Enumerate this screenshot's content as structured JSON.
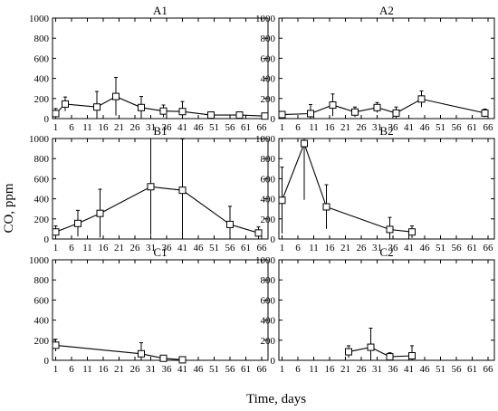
{
  "figure": {
    "ylabel": "CO, ppm",
    "xlabel": "Time, days"
  },
  "chart_data": [
    {
      "type": "line",
      "title": "A1",
      "xlim": [
        0,
        68
      ],
      "ylim": [
        0,
        1000
      ],
      "xticks": [
        1,
        6,
        11,
        16,
        21,
        26,
        31,
        36,
        41,
        46,
        51,
        56,
        61,
        66
      ],
      "yticks": [
        0,
        200,
        400,
        600,
        800,
        1000
      ],
      "points": [
        {
          "x": 1,
          "y": 50,
          "err": 50
        },
        {
          "x": 4,
          "y": 145,
          "err": 70
        },
        {
          "x": 14,
          "y": 115,
          "err": 155
        },
        {
          "x": 20,
          "y": 220,
          "err": 190
        },
        {
          "x": 28,
          "y": 110,
          "err": 110
        },
        {
          "x": 35,
          "y": 75,
          "err": 60
        },
        {
          "x": 41,
          "y": 70,
          "err": 100
        },
        {
          "x": 50,
          "y": 35,
          "err": 30
        },
        {
          "x": 59,
          "y": 35,
          "err": 30
        },
        {
          "x": 67,
          "y": 25,
          "err": 20
        }
      ]
    },
    {
      "type": "line",
      "title": "A2",
      "xlim": [
        0,
        68
      ],
      "ylim": [
        0,
        1000
      ],
      "xticks": [
        1,
        6,
        11,
        16,
        21,
        26,
        31,
        36,
        41,
        46,
        51,
        56,
        61,
        66
      ],
      "yticks": [
        0,
        200,
        400,
        600,
        800,
        1000
      ],
      "points": [
        {
          "x": 1,
          "y": 40,
          "err": 30
        },
        {
          "x": 10,
          "y": 50,
          "err": 90
        },
        {
          "x": 17,
          "y": 135,
          "err": 110
        },
        {
          "x": 24,
          "y": 65,
          "err": 50
        },
        {
          "x": 31,
          "y": 110,
          "err": 50
        },
        {
          "x": 37,
          "y": 55,
          "err": 60
        },
        {
          "x": 45,
          "y": 195,
          "err": 80
        },
        {
          "x": 65,
          "y": 55,
          "err": 40
        }
      ]
    },
    {
      "type": "line",
      "title": "B1",
      "xlim": [
        0,
        68
      ],
      "ylim": [
        0,
        1000
      ],
      "xticks": [
        1,
        6,
        11,
        16,
        21,
        26,
        31,
        36,
        41,
        46,
        51,
        56,
        61,
        66
      ],
      "yticks": [
        0,
        200,
        400,
        600,
        800,
        1000
      ],
      "points": [
        {
          "x": 1,
          "y": 70,
          "err": 60
        },
        {
          "x": 8,
          "y": 155,
          "err": 130
        },
        {
          "x": 15,
          "y": 255,
          "err": 240
        },
        {
          "x": 31,
          "y": 520,
          "err": 480
        },
        {
          "x": 41,
          "y": 485,
          "err": 510
        },
        {
          "x": 56,
          "y": 145,
          "err": 180
        },
        {
          "x": 65,
          "y": 60,
          "err": 60
        }
      ]
    },
    {
      "type": "line",
      "title": "B2",
      "xlim": [
        0,
        68
      ],
      "ylim": [
        0,
        1000
      ],
      "xticks": [
        1,
        6,
        11,
        16,
        21,
        26,
        31,
        36,
        41,
        46,
        51,
        56,
        61,
        66
      ],
      "yticks": [
        0,
        200,
        400,
        600,
        800,
        1000
      ],
      "points": [
        {
          "x": 1,
          "y": 385,
          "err": 330
        },
        {
          "x": 8,
          "y": 950,
          "err": 560
        },
        {
          "x": 15,
          "y": 320,
          "err": 220
        },
        {
          "x": 35,
          "y": 95,
          "err": 120
        },
        {
          "x": 42,
          "y": 70,
          "err": 60
        }
      ]
    },
    {
      "type": "line",
      "title": "C1",
      "xlim": [
        0,
        68
      ],
      "ylim": [
        0,
        1000
      ],
      "xticks": [
        1,
        6,
        11,
        16,
        21,
        26,
        31,
        36,
        41,
        46,
        51,
        56,
        61,
        66
      ],
      "yticks": [
        0,
        200,
        400,
        600,
        800,
        1000
      ],
      "points": [
        {
          "x": 1,
          "y": 150,
          "err": 60
        },
        {
          "x": 28,
          "y": 65,
          "err": 110
        },
        {
          "x": 35,
          "y": 20,
          "err": 15
        },
        {
          "x": 41,
          "y": 5,
          "err": 5
        }
      ]
    },
    {
      "type": "line",
      "title": "C2",
      "xlim": [
        0,
        68
      ],
      "ylim": [
        0,
        1000
      ],
      "xticks": [
        1,
        6,
        11,
        16,
        21,
        26,
        31,
        36,
        41,
        46,
        51,
        56,
        61,
        66
      ],
      "yticks": [
        0,
        200,
        400,
        600,
        800,
        1000
      ],
      "points": [
        {
          "x": 22,
          "y": 85,
          "err": 60
        },
        {
          "x": 29,
          "y": 130,
          "err": 190
        },
        {
          "x": 35,
          "y": 35,
          "err": 40
        },
        {
          "x": 42,
          "y": 45,
          "err": 100
        }
      ]
    }
  ]
}
